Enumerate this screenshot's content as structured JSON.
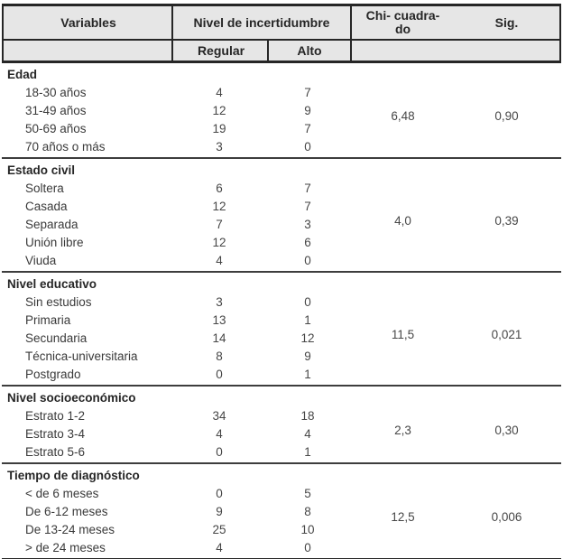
{
  "table": {
    "header": {
      "variables": "Variables",
      "nivel": "Nivel de incertidumbre",
      "chi_line1": "Chi- cuadra-",
      "chi_line2": "do",
      "sig": "Sig.",
      "regular": "Regular",
      "alto": "Alto"
    },
    "colors": {
      "header_bg": "#e6e6e6",
      "border": "#262626",
      "text": "#3a3a3a"
    },
    "sections": [
      {
        "name": "Edad",
        "chi": "6,48",
        "sig": "0,90",
        "rows": [
          {
            "label": "18-30 años",
            "regular": "4",
            "alto": "7"
          },
          {
            "label": "31-49 años",
            "regular": "12",
            "alto": "9"
          },
          {
            "label": "50-69 años",
            "regular": "19",
            "alto": "7"
          },
          {
            "label": "70 años o más",
            "regular": "3",
            "alto": "0"
          }
        ]
      },
      {
        "name": "Estado civil",
        "chi": "4,0",
        "sig": "0,39",
        "rows": [
          {
            "label": "Soltera",
            "regular": "6",
            "alto": "7"
          },
          {
            "label": "Casada",
            "regular": "12",
            "alto": "7"
          },
          {
            "label": "Separada",
            "regular": "7",
            "alto": "3"
          },
          {
            "label": "Unión libre",
            "regular": "12",
            "alto": "6"
          },
          {
            "label": "Viuda",
            "regular": "4",
            "alto": "0"
          }
        ]
      },
      {
        "name": "Nivel educativo",
        "chi": "11,5",
        "sig": "0,021",
        "rows": [
          {
            "label": "Sin estudios",
            "regular": "3",
            "alto": "0"
          },
          {
            "label": "Primaria",
            "regular": "13",
            "alto": "1"
          },
          {
            "label": "Secundaria",
            "regular": "14",
            "alto": "12"
          },
          {
            "label": "Técnica-universitaria",
            "regular": "8",
            "alto": "9"
          },
          {
            "label": "Postgrado",
            "regular": "0",
            "alto": "1"
          }
        ]
      },
      {
        "name": "Nivel socioeconómico",
        "chi": "2,3",
        "sig": "0,30",
        "rows": [
          {
            "label": "Estrato 1-2",
            "regular": "34",
            "alto": "18"
          },
          {
            "label": "Estrato 3-4",
            "regular": "4",
            "alto": "4"
          },
          {
            "label": "Estrato 5-6",
            "regular": "0",
            "alto": "1"
          }
        ]
      },
      {
        "name": "Tiempo de diagnóstico",
        "chi": "12,5",
        "sig": "0,006",
        "rows": [
          {
            "label": "< de 6 meses",
            "regular": "0",
            "alto": "5"
          },
          {
            "label": "De 6-12 meses",
            "regular": "9",
            "alto": "8"
          },
          {
            "label": "De 13-24 meses",
            "regular": "25",
            "alto": "10"
          },
          {
            "label": "> de 24 meses",
            "regular": "4",
            "alto": "0"
          }
        ]
      }
    ]
  }
}
